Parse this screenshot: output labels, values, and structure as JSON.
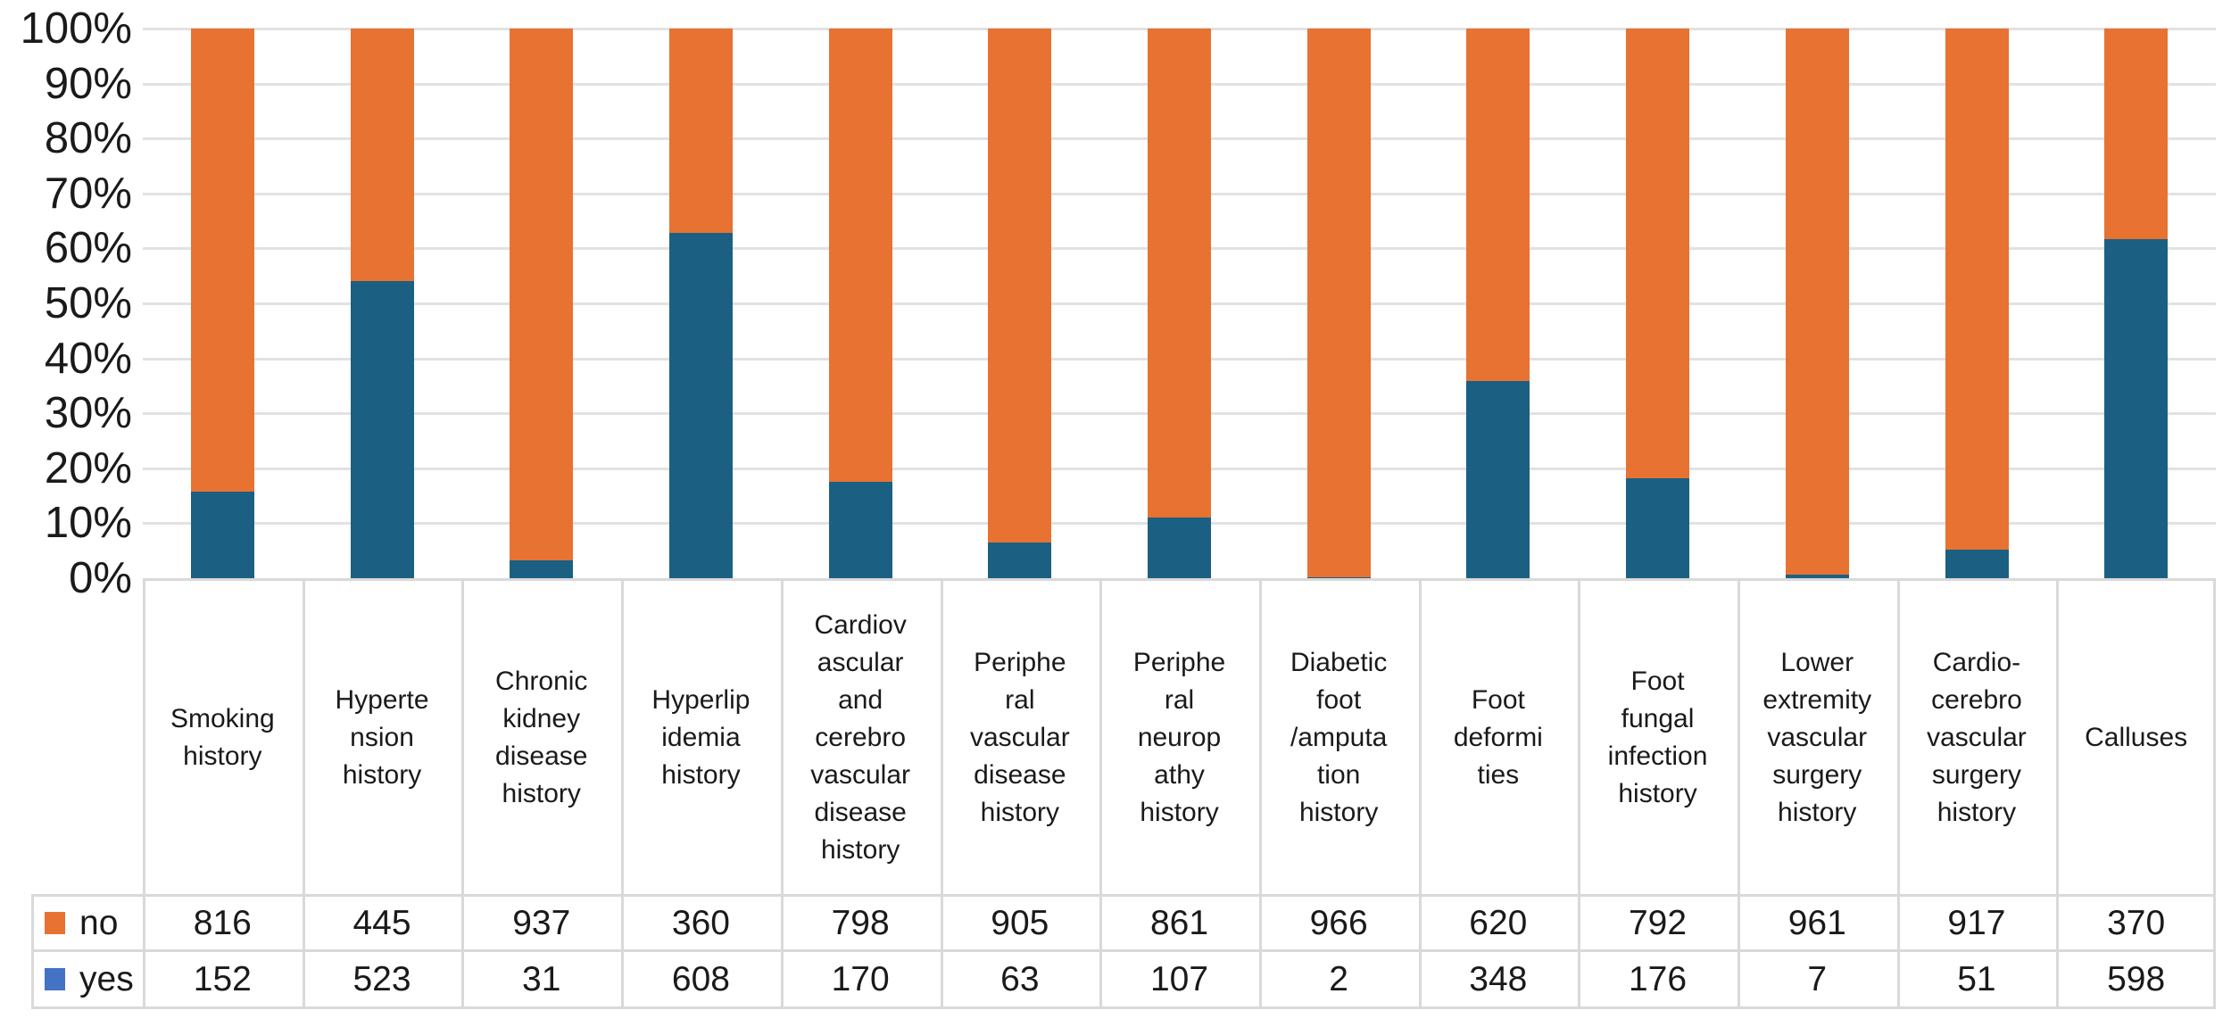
{
  "chart_data": {
    "type": "bar",
    "stacking": "100%-stacked-column",
    "title": "",
    "xlabel": "",
    "ylabel": "",
    "categories": [
      "Smoking history",
      "Hypertension history",
      "Chronic kidney disease history",
      "Hyperlipidemia history",
      "Cardiovascular and cerebrovascular disease history",
      "Peripheral vascular disease history",
      "Peripheral neuropathy history",
      "Diabetic foot/amputation history",
      "Foot deformities",
      "Foot fungal infection history",
      "Lower extremity vascular surgery history",
      "Cardio-cerebrovascular surgery history",
      "Calluses"
    ],
    "category_label_lines": [
      [
        "Smoking",
        "history"
      ],
      [
        "Hyperte",
        "nsion",
        "history"
      ],
      [
        "Chronic",
        "kidney",
        "disease",
        "history"
      ],
      [
        "Hyperlip",
        "idemia",
        "history"
      ],
      [
        "Cardiov",
        "ascular",
        "and",
        "cerebro",
        "vascular",
        "disease",
        "history"
      ],
      [
        "Periphe",
        "ral",
        "vascular",
        "disease",
        "history"
      ],
      [
        "Periphe",
        "ral",
        "neurop",
        "athy",
        "history"
      ],
      [
        "Diabetic",
        "foot",
        "/amputa",
        "tion",
        "history"
      ],
      [
        "Foot",
        "deformi",
        "ties"
      ],
      [
        "Foot",
        "fungal",
        "infection",
        "history"
      ],
      [
        "Lower",
        "extremity",
        "vascular",
        "surgery",
        "history"
      ],
      [
        "Cardio-",
        "cerebro",
        "vascular",
        "surgery",
        "history"
      ],
      [
        "Calluses"
      ]
    ],
    "series": [
      {
        "name": "no",
        "color": "#E87232",
        "legend_color": "#E87232",
        "values": [
          816,
          445,
          937,
          360,
          798,
          905,
          861,
          966,
          620,
          792,
          961,
          917,
          370
        ]
      },
      {
        "name": "yes",
        "color": "#1B6082",
        "legend_color": "#4472C4",
        "values": [
          152,
          523,
          31,
          608,
          170,
          63,
          107,
          2,
          348,
          176,
          7,
          51,
          598
        ]
      }
    ],
    "y_axis": {
      "ticks": [
        "0%",
        "10%",
        "20%",
        "30%",
        "40%",
        "50%",
        "60%",
        "70%",
        "80%",
        "90%",
        "100%"
      ],
      "min": "0%",
      "max": "100%",
      "grid": true
    },
    "legend": {
      "position": "table-left",
      "entries": [
        "no",
        "yes"
      ]
    },
    "colors": {
      "gridline": "#E2E2E2",
      "table_border": "#D9D9D9",
      "text": "#1A1A1A",
      "background": "#FFFFFF"
    }
  }
}
